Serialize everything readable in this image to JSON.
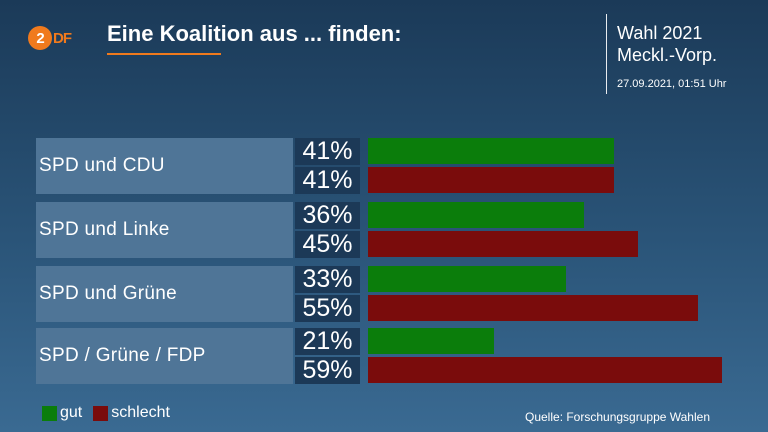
{
  "header": {
    "logo_text": "ZDF",
    "title": "Eine Koalition aus ... finden:",
    "election_line1": "Wahl 2021",
    "election_line2": "Meckl.-Vorp.",
    "timestamp": "27.09.2021, 01:51 Uhr"
  },
  "colors": {
    "gut": "#0b7d0b",
    "schlecht": "#7a0c0c",
    "accent": "#f07a1d"
  },
  "chart_data": {
    "type": "bar",
    "orientation": "horizontal",
    "title": "Eine Koalition aus ... finden:",
    "categories": [
      "SPD und CDU",
      "SPD und Linke",
      "SPD und Grüne",
      "SPD / Grüne / FDP"
    ],
    "series": [
      {
        "name": "gut",
        "values": [
          41,
          36,
          33,
          21
        ],
        "labels": [
          "41%",
          "36%",
          "33%",
          "21%"
        ]
      },
      {
        "name": "schlecht",
        "values": [
          41,
          45,
          55,
          59
        ],
        "labels": [
          "41%",
          "45%",
          "55%",
          "59%"
        ]
      }
    ],
    "unit": "%",
    "xlim": [
      0,
      100
    ],
    "grid": false,
    "legend": "bottom-left"
  },
  "legend": {
    "gut": "gut",
    "schlecht": "schlecht"
  },
  "source": "Quelle: Forschungsgruppe Wahlen"
}
